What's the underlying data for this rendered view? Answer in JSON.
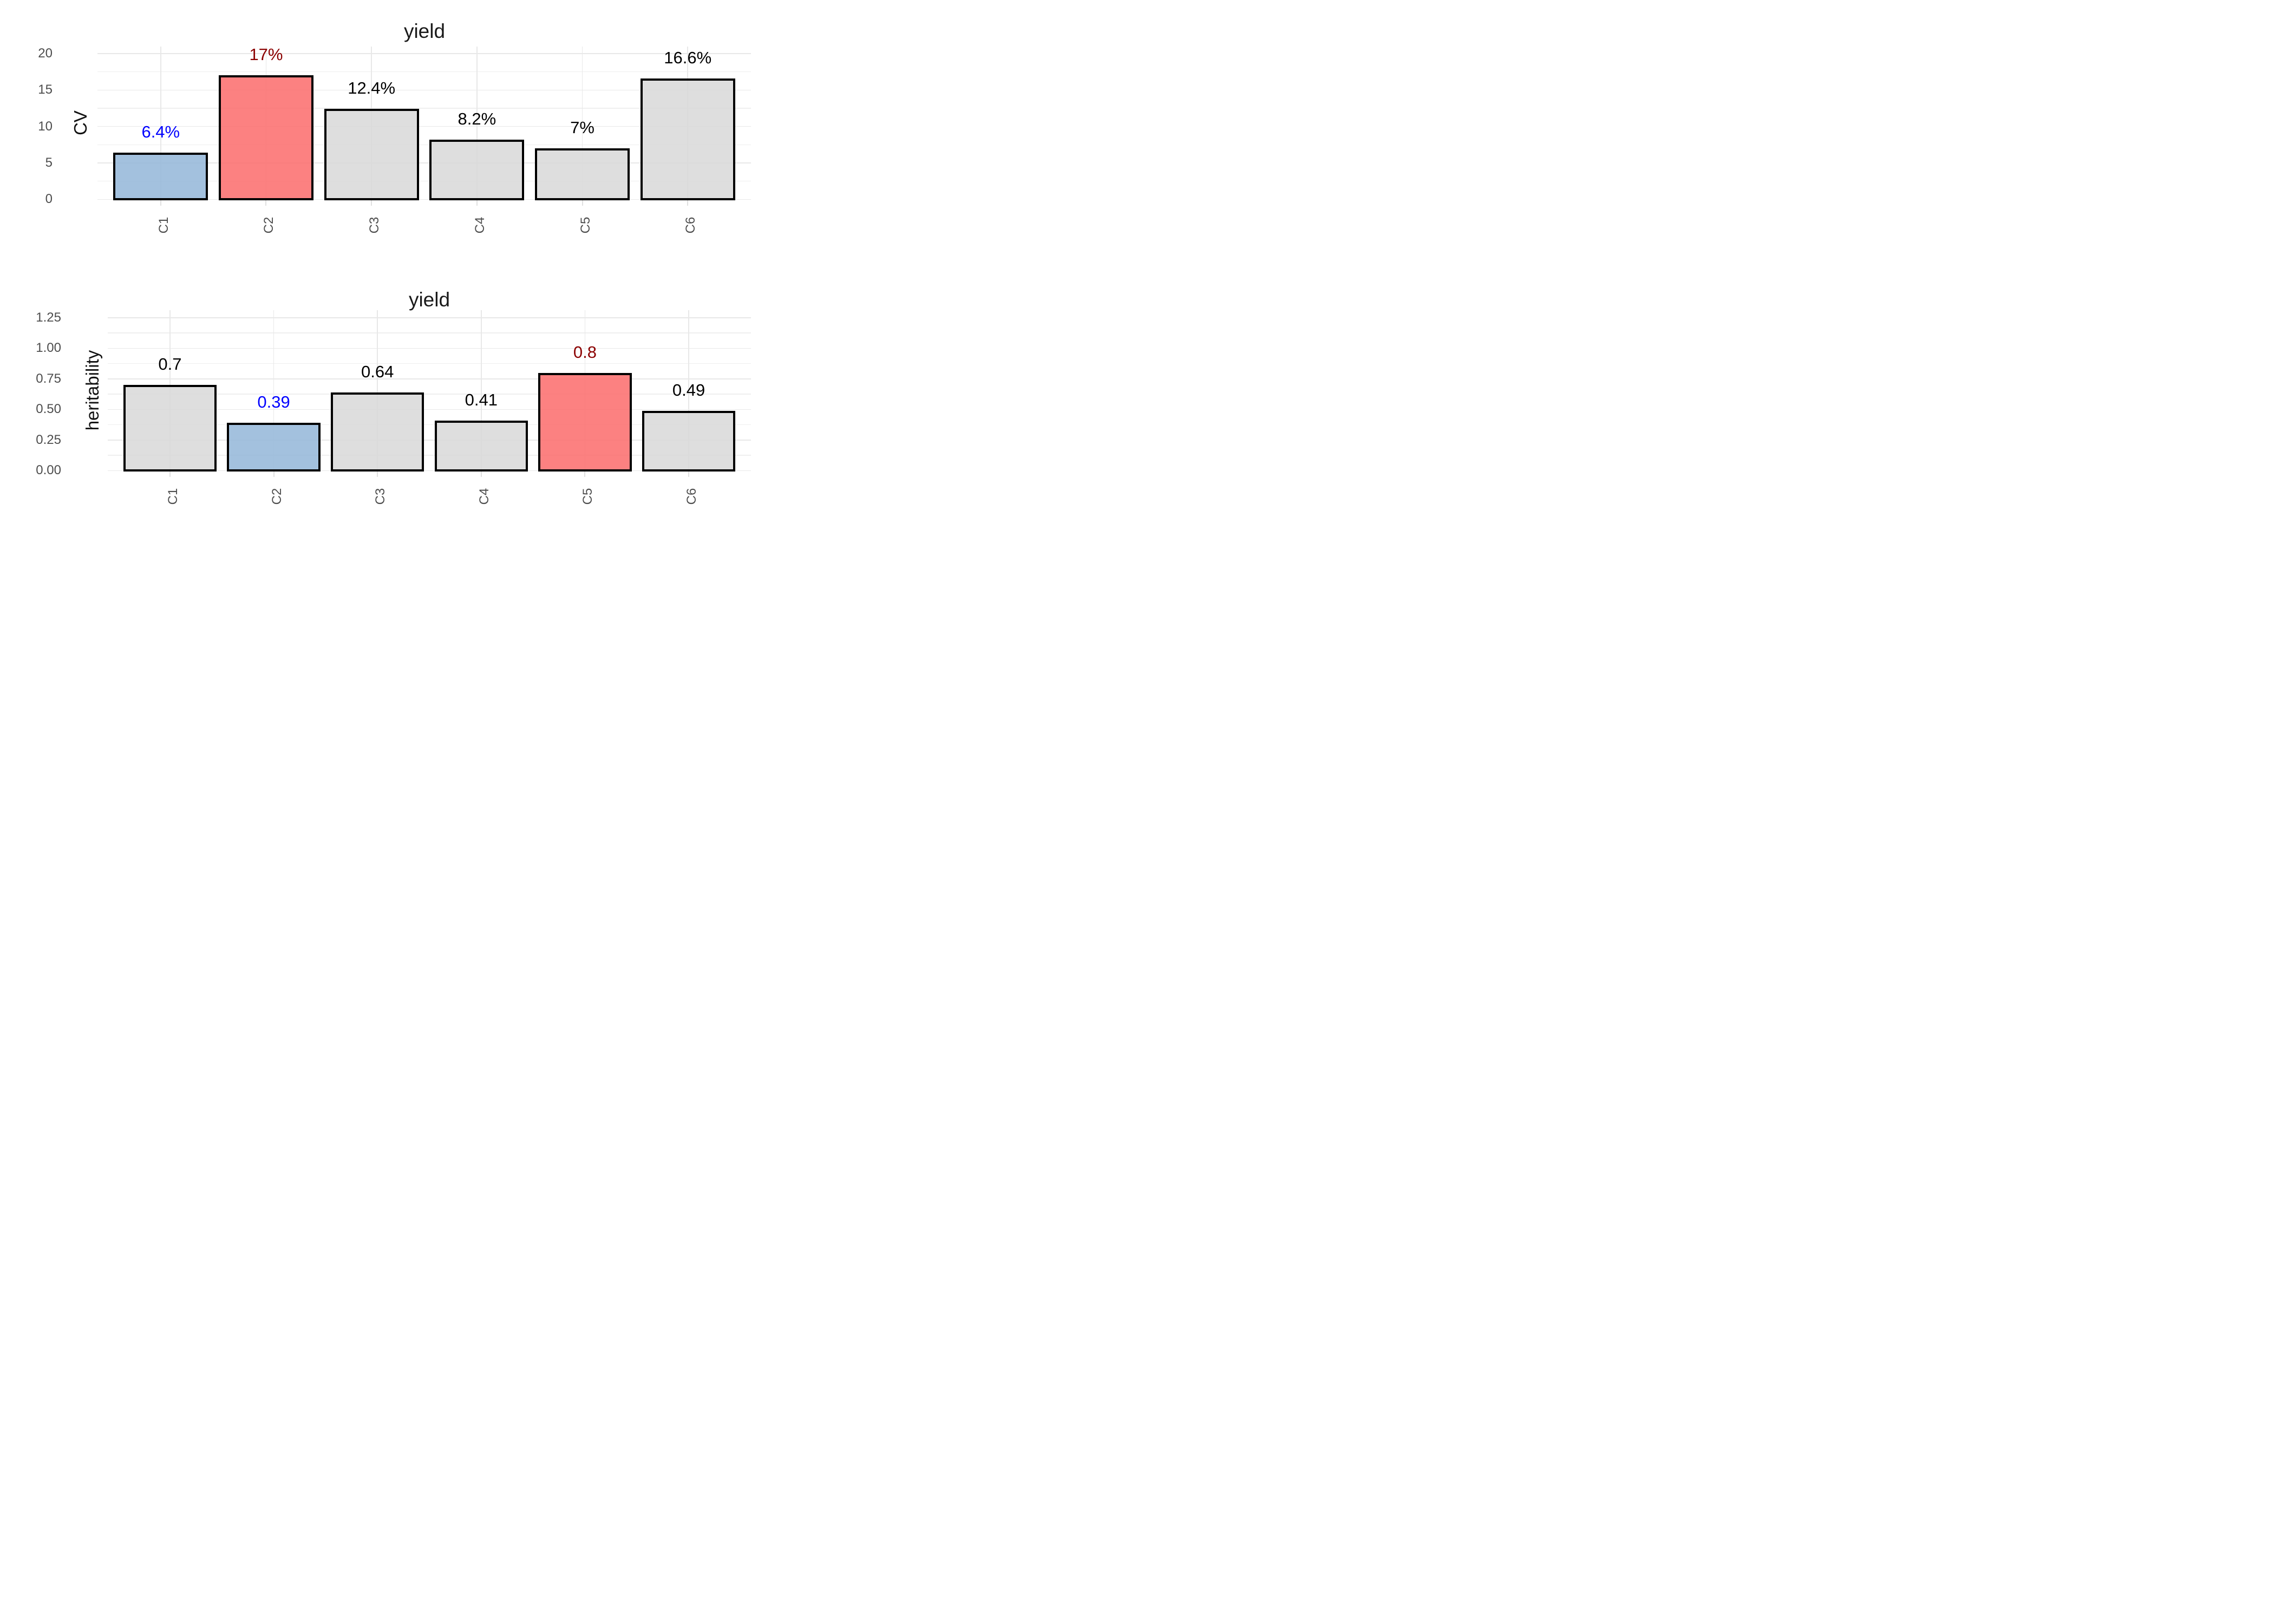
{
  "figure_background": "#FFFFFF",
  "colors": {
    "grid_major": "#E8E8E8",
    "grid_minor": "#EFEFEF",
    "axis_tick": "#E0E0E0",
    "bar_border": "#000000",
    "axis_text": "#4D4D4D",
    "title_text": "#1A1A1A",
    "highlight_blue": "#0000FF",
    "highlight_darkred": "#8B0000",
    "fill_blue": "#93B6D8",
    "fill_red": "#FC6B6B",
    "fill_grey": "#D8D8D8"
  },
  "chart_data": [
    {
      "type": "bar",
      "title": "yield",
      "xlabel": "",
      "ylabel": "CV",
      "categories": [
        "C1",
        "C2",
        "C3",
        "C4",
        "C5",
        "C6"
      ],
      "values": [
        6.4,
        17,
        12.4,
        8.2,
        7,
        16.6
      ],
      "bar_labels": [
        "6.4%",
        "17%",
        "12.4%",
        "8.2%",
        "7%",
        "16.6%"
      ],
      "bar_label_colors": [
        "#0000FF",
        "#8B0000",
        "#000000",
        "#000000",
        "#000000",
        "#000000"
      ],
      "bar_fills": [
        "#93B6D8",
        "#FC6B6B",
        "#D8D8D8",
        "#D8D8D8",
        "#D8D8D8",
        "#D8D8D8"
      ],
      "fill_alpha": 0.85,
      "ylim": [
        0,
        21
      ],
      "yticks": [
        0,
        5,
        10,
        15,
        20
      ],
      "ytick_labels": [
        "0",
        "5",
        "10",
        "15",
        "20"
      ],
      "minor_yticks": [
        2.5,
        7.5,
        12.5,
        17.5
      ],
      "grid": "major-and-minor-horizontal, major-vertical-at-category-centers",
      "legend": "none",
      "bar_outline_color": "#000000"
    },
    {
      "type": "bar",
      "title": "yield",
      "xlabel": "",
      "ylabel": "heritability",
      "categories": [
        "C1",
        "C2",
        "C3",
        "C4",
        "C5",
        "C6"
      ],
      "values": [
        0.7,
        0.39,
        0.64,
        0.41,
        0.8,
        0.49
      ],
      "bar_labels": [
        "0.7",
        "0.39",
        "0.64",
        "0.41",
        "0.8",
        "0.49"
      ],
      "bar_label_colors": [
        "#000000",
        "#0000FF",
        "#000000",
        "#000000",
        "#8B0000",
        "#000000"
      ],
      "bar_fills": [
        "#D8D8D8",
        "#93B6D8",
        "#D8D8D8",
        "#D8D8D8",
        "#FC6B6B",
        "#D8D8D8"
      ],
      "fill_alpha": 0.85,
      "ylim": [
        0,
        1.3125
      ],
      "yticks": [
        0,
        0.25,
        0.5,
        0.75,
        1,
        1.25
      ],
      "ytick_labels": [
        "0.00",
        "0.25",
        "0.50",
        "0.75",
        "1.00",
        "1.25"
      ],
      "minor_yticks": [
        0.125,
        0.375,
        0.625,
        0.875,
        1.125
      ],
      "grid": "major-and-minor-horizontal, major-vertical-at-category-centers",
      "legend": "none",
      "bar_outline_color": "#000000"
    }
  ]
}
